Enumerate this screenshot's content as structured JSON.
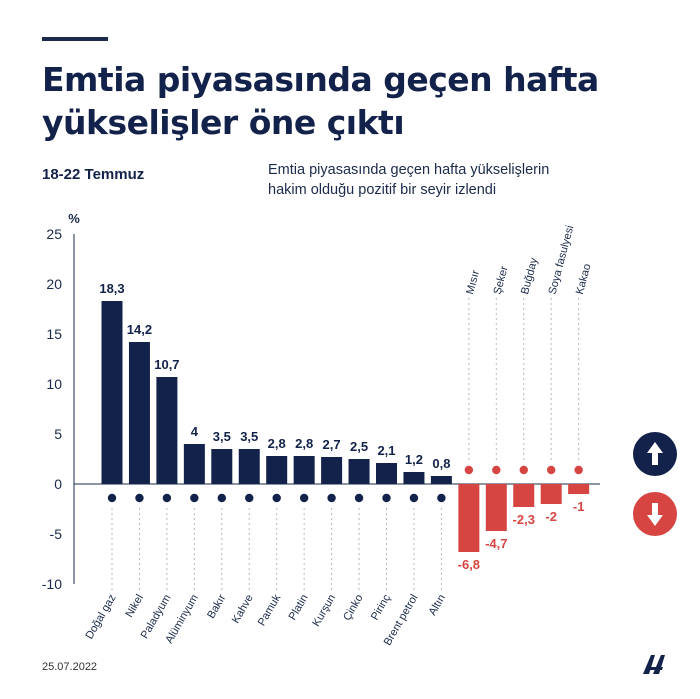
{
  "header": {
    "title_line1": "Emtia piyasasında geçen hafta",
    "title_line2": "yükselişler öne çıktı",
    "date_range": "18-22 Temmuz",
    "subtitle_line1": "Emtia piyasasında geçen hafta yükselişlerin",
    "subtitle_line2": "hakim olduğu pozitif bir seyir izlendi"
  },
  "footer": {
    "date": "25.07.2022",
    "logo": "AA"
  },
  "colors": {
    "positive": "#13224a",
    "negative": "#d64541",
    "text": "#1b2a4a"
  },
  "icons": {
    "up": "arrow-up-icon",
    "down": "arrow-down-icon"
  },
  "chart_data": {
    "type": "bar",
    "ylabel": "%",
    "ylim": [
      -10,
      25
    ],
    "yticks": [
      -10,
      -5,
      0,
      5,
      10,
      15,
      20,
      25
    ],
    "grid": false,
    "categories": [
      "Doğal gaz",
      "Nikel",
      "Paladyum",
      "Alüminyum",
      "Bakır",
      "Kahve",
      "Pamuk",
      "Platin",
      "Kurşun",
      "Çinko",
      "Pirinç",
      "Brent petrol",
      "Altın",
      "Mısır",
      "Şeker",
      "Buğday",
      "Soya fasulyesi",
      "Kakao"
    ],
    "values": [
      18.3,
      14.2,
      10.7,
      4,
      3.5,
      3.5,
      2.8,
      2.8,
      2.7,
      2.5,
      2.1,
      1.2,
      0.8,
      -6.8,
      -4.7,
      -2.3,
      -2,
      -1
    ],
    "value_labels": [
      "18,3",
      "14,2",
      "10,7",
      "4",
      "3,5",
      "3,5",
      "2,8",
      "2,8",
      "2,7",
      "2,5",
      "2,1",
      "1,2",
      "0,8",
      "-6,8",
      "-4,7",
      "-2,3",
      "-2",
      "-1"
    ]
  }
}
